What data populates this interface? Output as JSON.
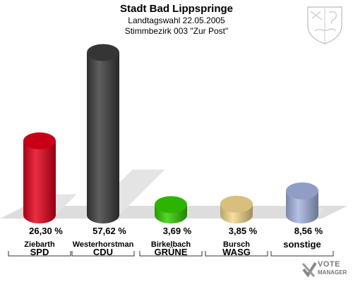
{
  "header": {
    "title": "Stadt Bad Lippspringe",
    "subtitle1": "Landtagswahl 22.05.2005",
    "subtitle2": "Stimmbezirk 003 \"Zur Post\""
  },
  "chart_data": {
    "type": "bar",
    "categories": [
      "SPD",
      "CDU",
      "GRÜNE",
      "WASG",
      "sonstige"
    ],
    "candidates": [
      "Ziebarth",
      "Westerhorstman",
      "Birkelbach",
      "Bursch",
      ""
    ],
    "values": [
      26.3,
      57.62,
      3.69,
      3.85,
      8.56
    ],
    "value_labels": [
      "26,30 %",
      "57,62 %",
      "3,69 %",
      "3,85 %",
      "8,56 %"
    ],
    "colors": [
      "#e2001a",
      "#3c3c3c",
      "#33cc00",
      "#f5d98e",
      "#a4b4e0"
    ],
    "title": "Stadt Bad Lippspringe",
    "ylim": [
      0,
      60
    ]
  },
  "logo": {
    "line1": "VOTE",
    "line2": "MANAGER"
  }
}
